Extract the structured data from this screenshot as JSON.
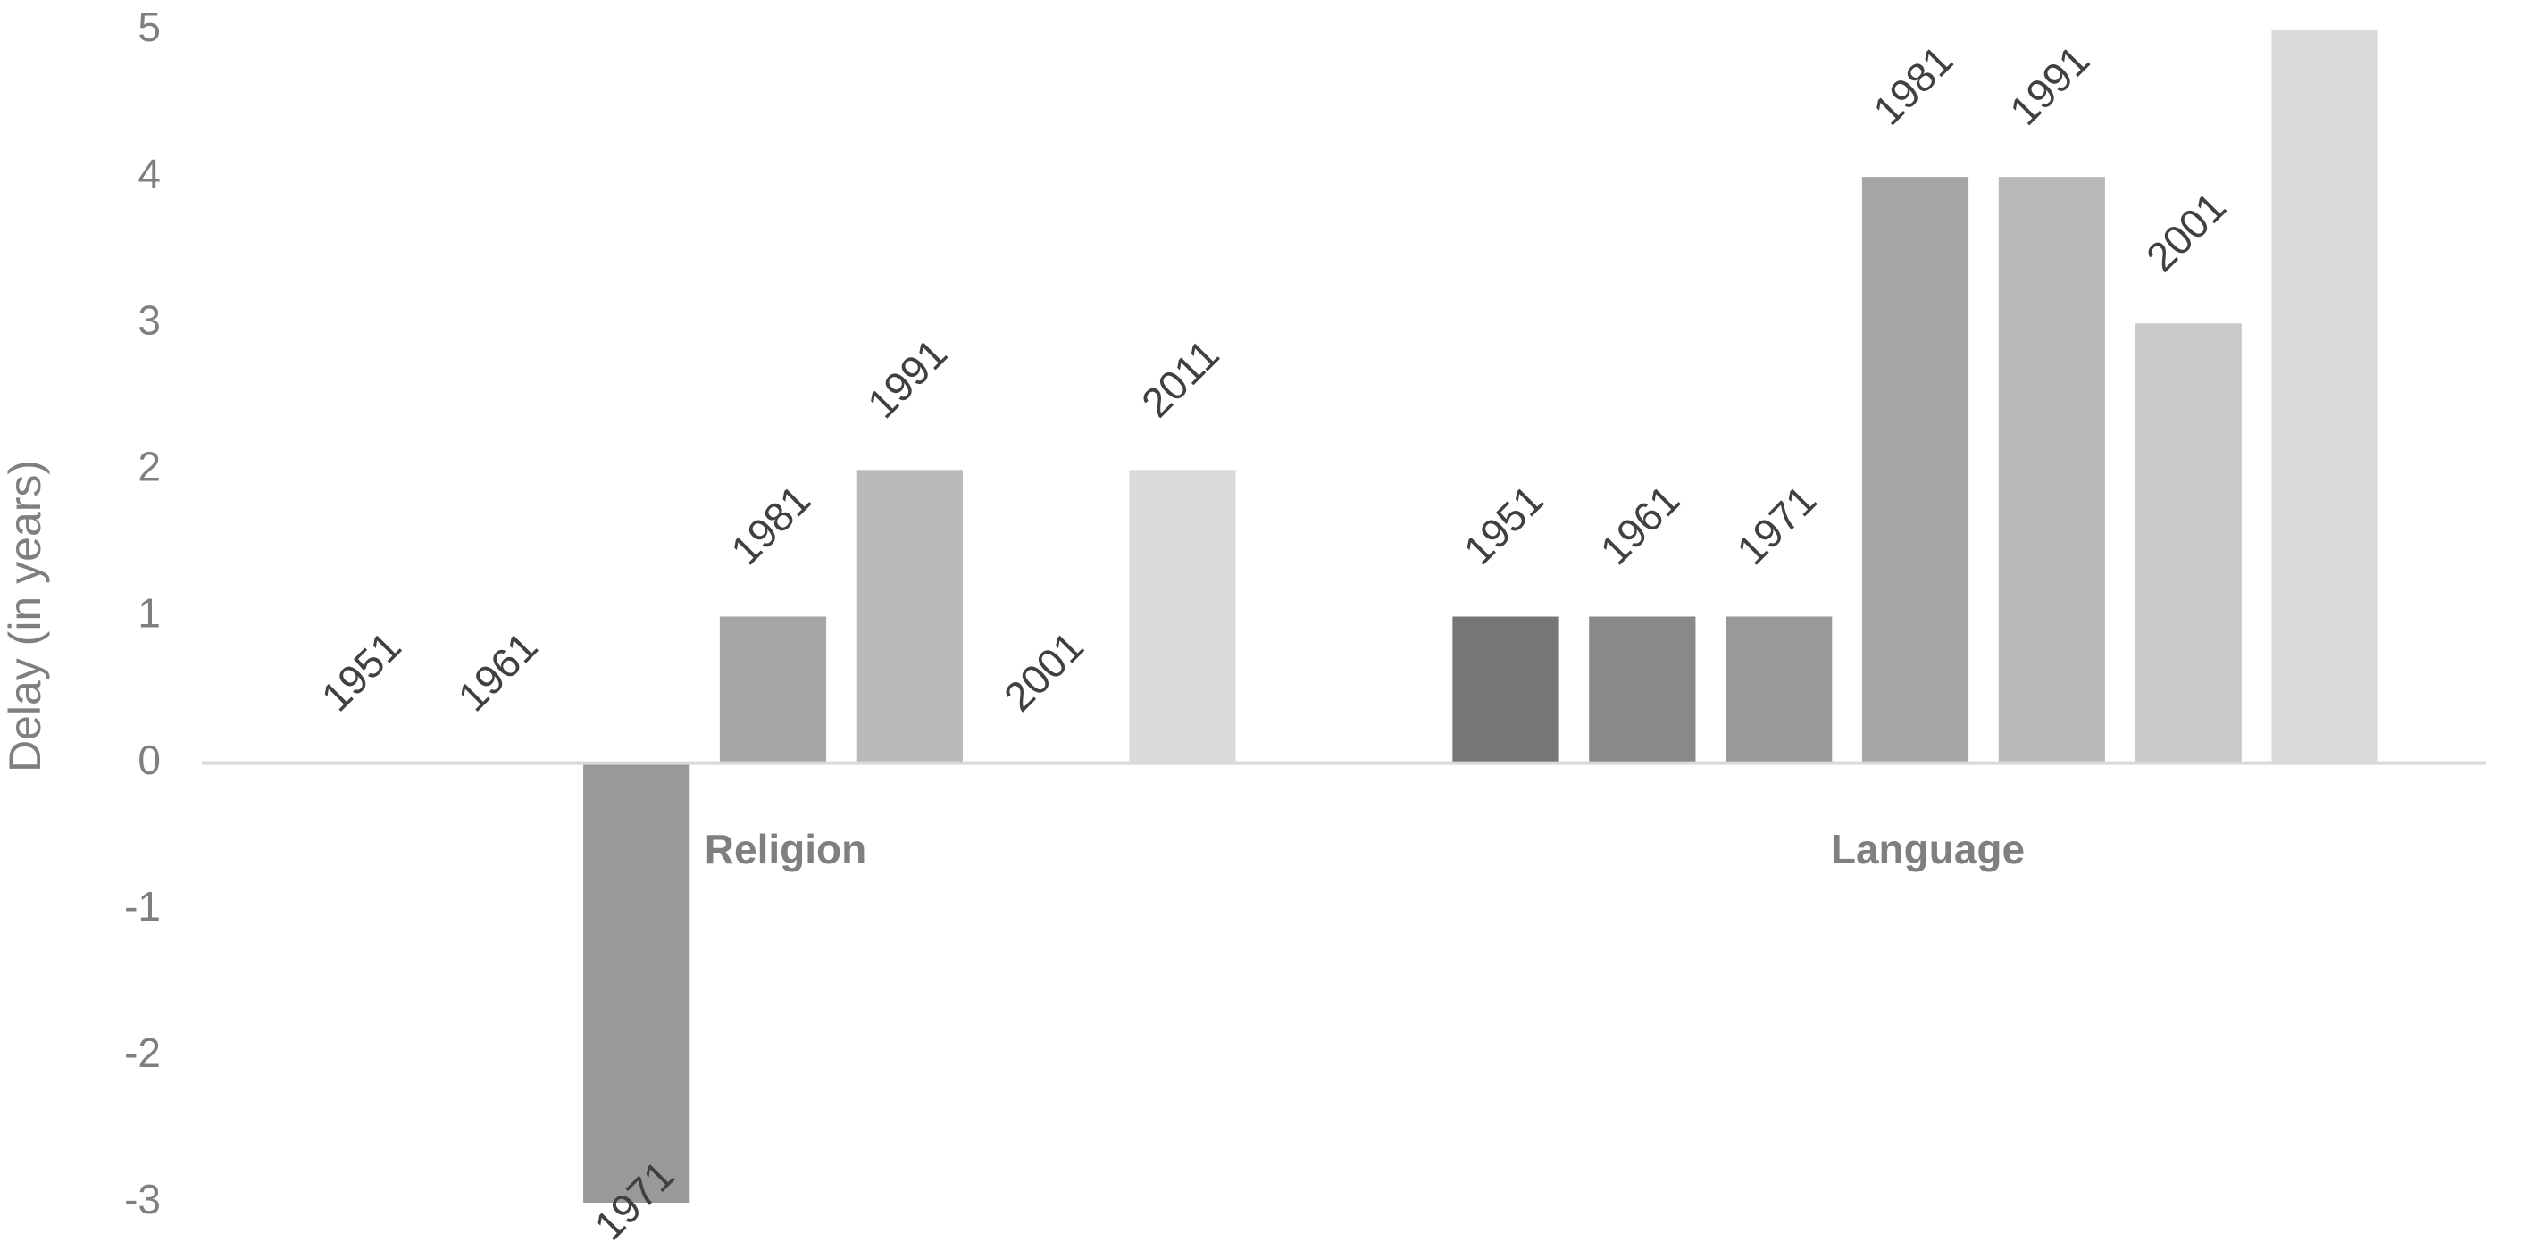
{
  "chart_data": {
    "type": "bar",
    "y_label": "Delay (in years)",
    "categories": [
      "Religion",
      "Language"
    ],
    "series": [
      {
        "name": "1951",
        "color": "#767676",
        "values": [
          0,
          1
        ]
      },
      {
        "name": "1961",
        "color": "#898989",
        "values": [
          0,
          1
        ]
      },
      {
        "name": "1971",
        "color": "#999999",
        "values": [
          -3,
          1
        ]
      },
      {
        "name": "1981",
        "color": "#a6a6a6",
        "values": [
          1,
          4
        ]
      },
      {
        "name": "1991",
        "color": "#b9b9b9",
        "values": [
          2,
          4
        ]
      },
      {
        "name": "2001",
        "color": "#c9c9c9",
        "values": [
          0,
          3
        ]
      },
      {
        "name": "2011",
        "color": "#dadada",
        "values": [
          2,
          5
        ]
      }
    ],
    "ylim": [
      -3,
      5
    ],
    "yticks": [
      -3,
      -2,
      -1,
      0,
      1,
      2,
      3,
      4,
      5
    ],
    "grid": false
  }
}
